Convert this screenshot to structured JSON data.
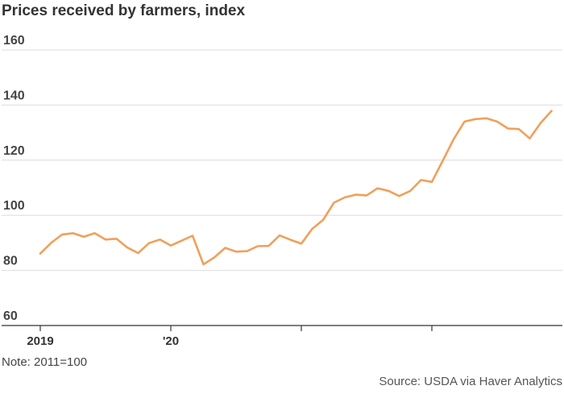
{
  "chart_data": {
    "type": "line",
    "title": "Prices received by farmers, index",
    "ylim": [
      60,
      160
    ],
    "yticks": [
      60,
      80,
      100,
      120,
      140,
      160
    ],
    "ytick_labels": [
      "60",
      "80",
      "100",
      "120",
      "140",
      "160"
    ],
    "x_tick_labels": [
      "2019",
      "'20",
      "",
      ""
    ],
    "grid": true,
    "color": "#f0a05a",
    "series": [
      {
        "values": [
          86.1,
          90.0,
          93.0,
          93.5,
          92.2,
          93.5,
          91.2,
          91.5,
          88.3,
          86.3,
          89.9,
          91.2,
          89.0,
          90.8,
          92.6,
          82.2,
          84.7,
          88.2,
          86.8,
          87.0,
          88.8,
          88.9,
          92.7,
          91.1,
          89.7,
          95.1,
          98.3,
          104.6,
          106.5,
          107.5,
          107.2,
          109.8,
          108.9,
          107.0,
          108.8,
          112.8,
          112.1,
          119.8,
          127.6,
          134.0,
          134.9,
          135.2,
          134.0,
          131.5,
          131.3,
          127.9,
          133.5,
          137.9
        ]
      }
    ],
    "note": "Note: 2011=100",
    "source": "Source: USDA via Haver Analytics"
  }
}
